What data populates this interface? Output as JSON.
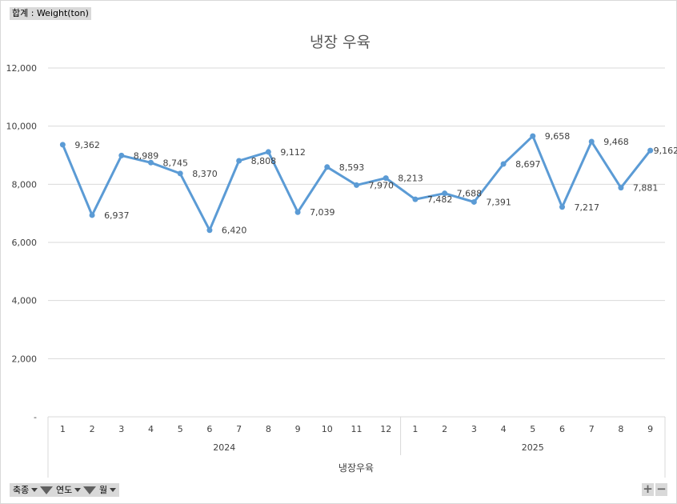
{
  "value_field_label": "합계 : Weight(ton)",
  "filters": [
    {
      "label": "축종",
      "filtered": true
    },
    {
      "label": "연도",
      "filtered": true
    },
    {
      "label": "월",
      "filtered": false
    }
  ],
  "zoom": {
    "expand": "+",
    "collapse": "−"
  },
  "colors": {
    "series": "#5b9bd5",
    "grid": "#d9d9d9",
    "text": "#404040"
  },
  "chart_data": {
    "type": "line",
    "title": "냉장 우육",
    "xlabel": "냉장우육",
    "ylabel": "",
    "ylim": [
      0,
      12000
    ],
    "y_ticks": [
      0,
      2000,
      4000,
      6000,
      8000,
      10000,
      12000
    ],
    "y_tick_labels": [
      "-",
      "2,000",
      "4,000",
      "6,000",
      "8,000",
      "10,000",
      "12,000"
    ],
    "grid": true,
    "legend": "none",
    "groups": [
      {
        "label": "2024",
        "months": [
          "1",
          "2",
          "3",
          "4",
          "5",
          "6",
          "7",
          "8",
          "9",
          "10",
          "11",
          "12"
        ]
      },
      {
        "label": "2025",
        "months": [
          "1",
          "2",
          "3",
          "4",
          "5",
          "6",
          "7",
          "8",
          "9"
        ]
      }
    ],
    "categories": [
      "2024-1",
      "2024-2",
      "2024-3",
      "2024-4",
      "2024-5",
      "2024-6",
      "2024-7",
      "2024-8",
      "2024-9",
      "2024-10",
      "2024-11",
      "2024-12",
      "2025-1",
      "2025-2",
      "2025-3",
      "2025-4",
      "2025-5",
      "2025-6",
      "2025-7",
      "2025-8",
      "2025-9"
    ],
    "values": [
      9362,
      6937,
      8989,
      8745,
      8370,
      6420,
      8808,
      9112,
      7039,
      8593,
      7970,
      8213,
      7482,
      7688,
      7391,
      8697,
      9658,
      7217,
      9468,
      7881,
      9162
    ],
    "data_labels": [
      "9,362",
      "6,937",
      "8,989",
      "8,745",
      "8,370",
      "6,420",
      "8,808",
      "9,112",
      "7,039",
      "8,593",
      "7,970",
      "8,213",
      "7,482",
      "7,688",
      "7,391",
      "8,697",
      "9,658",
      "7,217",
      "9,468",
      "7,881",
      "9,162"
    ]
  }
}
